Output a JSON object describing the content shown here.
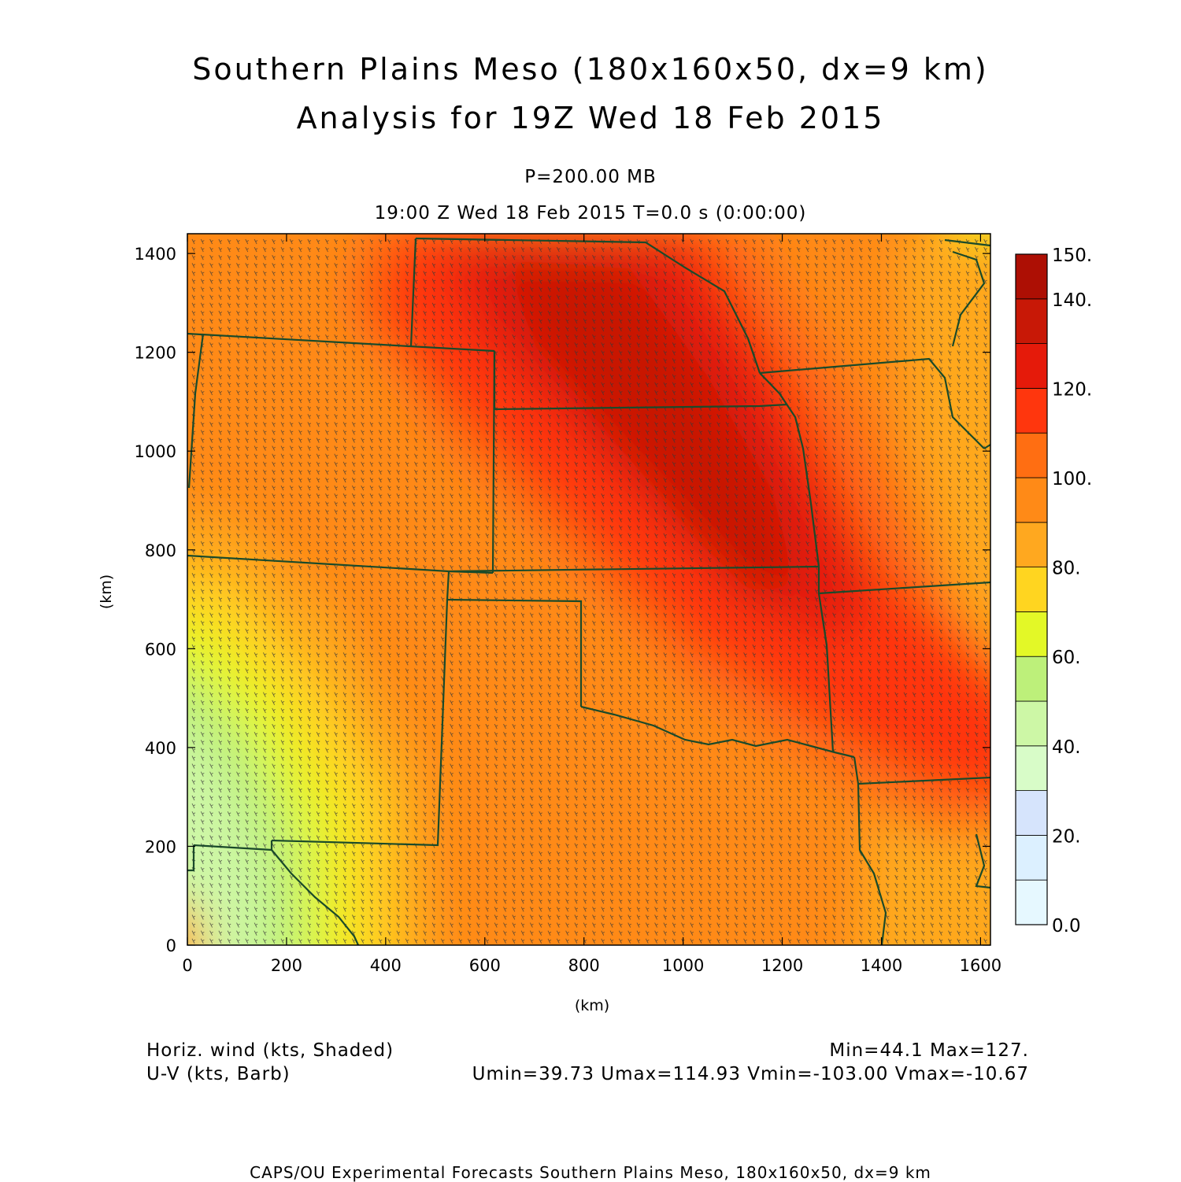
{
  "header": {
    "title_line1": "Southern Plains Meso (180x160x50, dx=9 km)",
    "title_line2": "Analysis for 19Z Wed 18 Feb 2015",
    "level": "P=200.00 MB",
    "time": "19:00 Z Wed 18 Feb 2015    T=0.0 s (0:00:00)"
  },
  "axes": {
    "x_label": "(km)",
    "y_label": "(km)",
    "x_ticks": [
      "0",
      "200",
      "400",
      "600",
      "800",
      "1000",
      "1200",
      "1400",
      "1600"
    ],
    "y_ticks": [
      "0",
      "200",
      "400",
      "600",
      "800",
      "1000",
      "1200",
      "1400"
    ],
    "x_range": [
      0,
      1620
    ],
    "y_range": [
      0,
      1440
    ]
  },
  "colorbar": {
    "labels": [
      "150.",
      "140.",
      "120.",
      "100.",
      "80.",
      "60.",
      "40.",
      "20.",
      "0.0"
    ],
    "label_values": [
      150,
      140,
      120,
      100,
      80,
      60,
      40,
      20,
      0
    ],
    "bands": [
      {
        "from": 0,
        "to": 10,
        "color": "#e6f8ff"
      },
      {
        "from": 10,
        "to": 20,
        "color": "#dcf0ff"
      },
      {
        "from": 20,
        "to": 30,
        "color": "#d6e4fc"
      },
      {
        "from": 30,
        "to": 40,
        "color": "#d8fcc8"
      },
      {
        "from": 40,
        "to": 50,
        "color": "#cdf7a6"
      },
      {
        "from": 50,
        "to": 60,
        "color": "#bdf07a"
      },
      {
        "from": 60,
        "to": 70,
        "color": "#e3f827"
      },
      {
        "from": 70,
        "to": 80,
        "color": "#ffd520"
      },
      {
        "from": 80,
        "to": 90,
        "color": "#ffa81f"
      },
      {
        "from": 90,
        "to": 100,
        "color": "#ff8a17"
      },
      {
        "from": 100,
        "to": 110,
        "color": "#ff6e12"
      },
      {
        "from": 110,
        "to": 120,
        "color": "#ff360d"
      },
      {
        "from": 120,
        "to": 130,
        "color": "#e51a0a"
      },
      {
        "from": 130,
        "to": 140,
        "color": "#c81806"
      },
      {
        "from": 140,
        "to": 150,
        "color": "#ad0f04"
      }
    ]
  },
  "legend": {
    "field1": "Horiz. wind (kts, Shaded)",
    "field2": "U-V (kts, Barb)",
    "minmax": "Min=44.1 Max=127.",
    "uv_stats": "Umin=39.73 Umax=114.93 Vmin=-103.00 Vmax=-10.67"
  },
  "footer": "CAPS/OU Experimental Forecasts  Southern Plains Meso, 180x160x50, dx=9 km",
  "colors": {
    "boundary": "#1a4a2a",
    "barb": "#3a3a3a",
    "frame": "#000000"
  }
}
